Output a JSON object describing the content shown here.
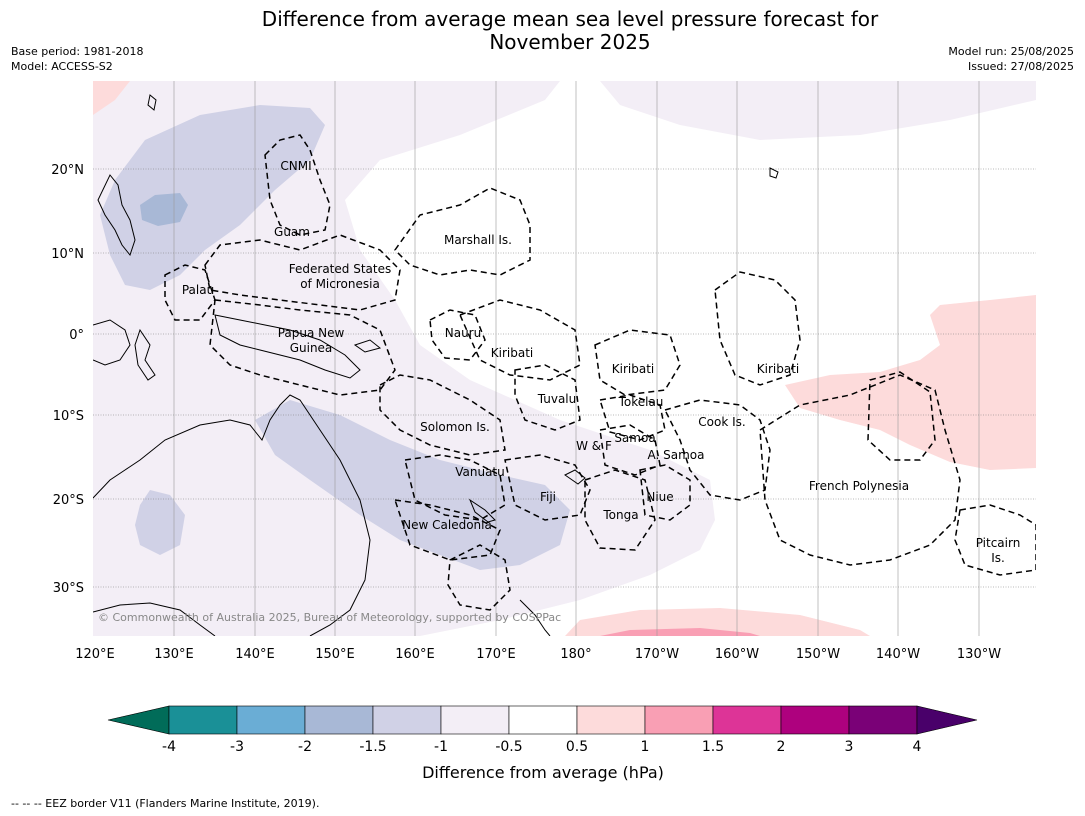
{
  "title_line1": "Difference from average mean sea level pressure forecast for",
  "title_line2": "November 2025",
  "meta": {
    "base_period": "Base period: 1981-2018",
    "model": "Model: ACCESS-S2",
    "model_run": "Model run: 25/08/2025",
    "issued": "Issued: 27/08/2025"
  },
  "map": {
    "lat_labels": [
      "20°N",
      "10°N",
      "0°",
      "10°S",
      "20°S",
      "30°S"
    ],
    "lon_labels": [
      "120°E",
      "130°E",
      "140°E",
      "150°E",
      "160°E",
      "170°E",
      "180°",
      "170°W",
      "160°W",
      "150°W",
      "140°W",
      "130°W"
    ],
    "places": {
      "cnmi": "CNMI",
      "guam": "Guam",
      "marshall": "Marshall Is.",
      "fsm1": "Federated States",
      "fsm2": "of Micronesia",
      "palau": "Palau",
      "png1": "Papua New",
      "png2": "Guinea",
      "nauru": "Nauru",
      "kiribati_w": "Kiribati",
      "kiribati_c": "Kiribati",
      "kiribati_e": "Kiribati",
      "tuvalu": "Tuvalu",
      "tokelau": "Tokelau",
      "cook": "Cook Is.",
      "solomon": "Solomon Is.",
      "samoa": "Samoa",
      "wf": "W & F",
      "asamoa": "A. Samoa",
      "vanuatu": "Vanuatu",
      "fiji": "Fiji",
      "niue": "Niue",
      "tonga": "Tonga",
      "newcal": "New Caledonia",
      "frpoly": "French Polynesia",
      "pitcairn1": "Pitcairn",
      "pitcairn2": "Is."
    },
    "copyright": "© Commonwealth of Australia 2025, Bureau of Meteorology, supported by COSPPac"
  },
  "colorbar": {
    "ticks": [
      "-4",
      "-3",
      "-2",
      "-1.5",
      "-1",
      "-0.5",
      "0.5",
      "1",
      "1.5",
      "2",
      "3",
      "4"
    ],
    "colors": [
      "#1a9097",
      "#6aadd5",
      "#a8b8d6",
      "#d0d1e6",
      "#f3eef6",
      "#ffffff",
      "#fddbdb",
      "#f99fb4",
      "#dd3497",
      "#ae017e",
      "#7a0177"
    ],
    "under_color": "#016c59",
    "over_color": "#49006a",
    "label": "Difference from average (hPa)"
  },
  "footer": "--  --  -- EEZ border V11 (Flanders Marine Institute, 2019)."
}
